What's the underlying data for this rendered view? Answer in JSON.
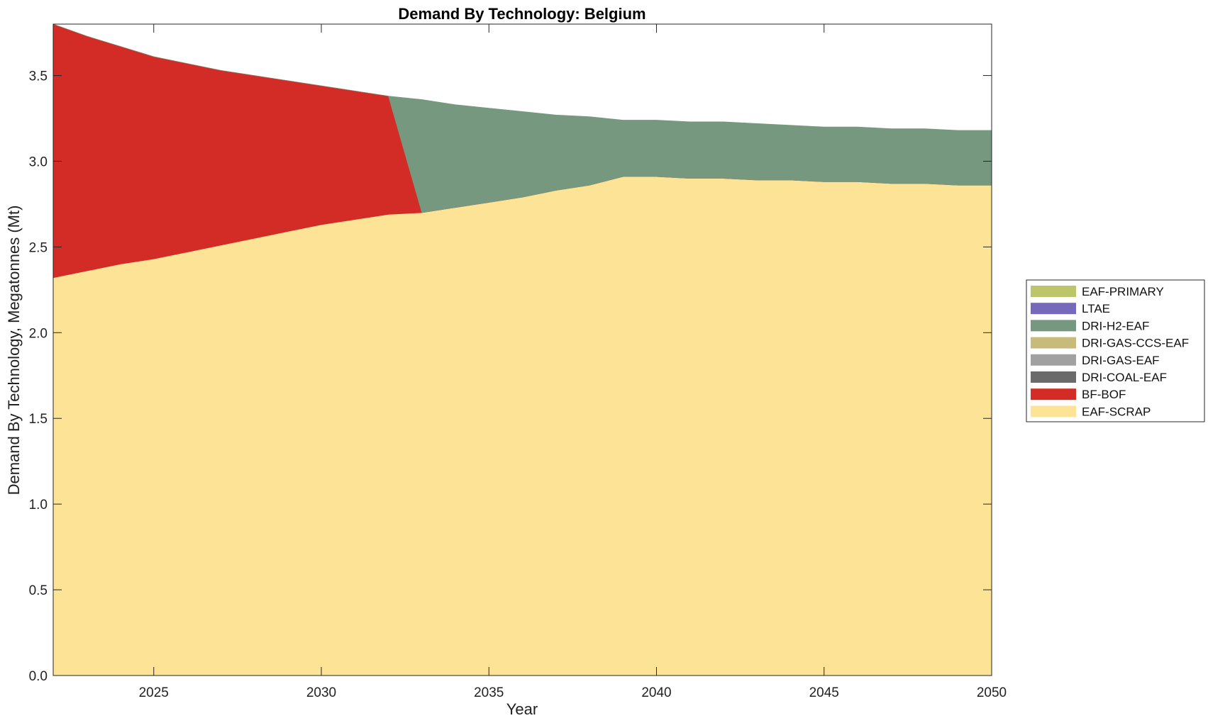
{
  "chart_data": {
    "type": "area",
    "stacked": true,
    "title": "Demand By Technology: Belgium",
    "xlabel": "Year",
    "ylabel": "Demand By Technology, Megatonnes (Mt)",
    "xlim": [
      2022,
      2050
    ],
    "ylim": [
      0,
      3.8
    ],
    "x_ticks": [
      "2025",
      "2030",
      "2035",
      "2040",
      "2045",
      "2050"
    ],
    "y_ticks": [
      "0.0",
      "0.5",
      "1.0",
      "1.5",
      "2.0",
      "2.5",
      "3.0",
      "3.5"
    ],
    "grid": false,
    "legend_position": "right",
    "x": [
      2022,
      2023,
      2024,
      2025,
      2026,
      2027,
      2028,
      2029,
      2030,
      2031,
      2032,
      2033,
      2034,
      2035,
      2036,
      2037,
      2038,
      2039,
      2040,
      2041,
      2042,
      2043,
      2044,
      2045,
      2046,
      2047,
      2048,
      2049,
      2050
    ],
    "series": [
      {
        "name": "EAF-SCRAP",
        "color": "#FDE395",
        "values": [
          2.32,
          2.36,
          2.4,
          2.43,
          2.47,
          2.51,
          2.55,
          2.59,
          2.63,
          2.66,
          2.69,
          2.7,
          2.73,
          2.76,
          2.79,
          2.83,
          2.86,
          2.91,
          2.91,
          2.9,
          2.9,
          2.89,
          2.89,
          2.88,
          2.88,
          2.87,
          2.87,
          2.86,
          2.86
        ]
      },
      {
        "name": "BF-BOF",
        "color": "#D32B25",
        "values": [
          1.48,
          1.37,
          1.27,
          1.18,
          1.1,
          1.02,
          0.95,
          0.88,
          0.81,
          0.75,
          0.69,
          0,
          0,
          0,
          0,
          0,
          0,
          0,
          0,
          0,
          0,
          0,
          0,
          0,
          0,
          0,
          0,
          0,
          0
        ]
      },
      {
        "name": "DRI-COAL-EAF",
        "color": "#6B6B6B",
        "values": [
          0,
          0,
          0,
          0,
          0,
          0,
          0,
          0,
          0,
          0,
          0,
          0,
          0,
          0,
          0,
          0,
          0,
          0,
          0,
          0,
          0,
          0,
          0,
          0,
          0,
          0,
          0,
          0,
          0
        ]
      },
      {
        "name": "DRI-GAS-EAF",
        "color": "#A1A1A1",
        "values": [
          0,
          0,
          0,
          0,
          0,
          0,
          0,
          0,
          0,
          0,
          0,
          0,
          0,
          0,
          0,
          0,
          0,
          0,
          0,
          0,
          0,
          0,
          0,
          0,
          0,
          0,
          0,
          0,
          0
        ]
      },
      {
        "name": "DRI-GAS-CCS-EAF",
        "color": "#C7BB7B",
        "values": [
          0,
          0,
          0,
          0,
          0,
          0,
          0,
          0,
          0,
          0,
          0,
          0,
          0,
          0,
          0,
          0,
          0,
          0,
          0,
          0,
          0,
          0,
          0,
          0,
          0,
          0,
          0,
          0,
          0
        ]
      },
      {
        "name": "DRI-H2-EAF",
        "color": "#76987E",
        "values": [
          0,
          0,
          0,
          0,
          0,
          0,
          0,
          0,
          0,
          0,
          0,
          0.66,
          0.6,
          0.55,
          0.5,
          0.44,
          0.4,
          0.33,
          0.33,
          0.33,
          0.33,
          0.33,
          0.32,
          0.32,
          0.32,
          0.32,
          0.32,
          0.32,
          0.32
        ]
      },
      {
        "name": "LTAE",
        "color": "#7569BB",
        "values": [
          0,
          0,
          0,
          0,
          0,
          0,
          0,
          0,
          0,
          0,
          0,
          0,
          0,
          0,
          0,
          0,
          0,
          0,
          0,
          0,
          0,
          0,
          0,
          0,
          0,
          0,
          0,
          0,
          0
        ]
      },
      {
        "name": "EAF-PRIMARY",
        "color": "#BDC56A",
        "values": [
          0,
          0,
          0,
          0,
          0,
          0,
          0,
          0,
          0,
          0,
          0,
          0,
          0,
          0,
          0,
          0,
          0,
          0,
          0,
          0,
          0,
          0,
          0,
          0,
          0,
          0,
          0,
          0,
          0
        ]
      }
    ],
    "legend_order": [
      "EAF-PRIMARY",
      "LTAE",
      "DRI-H2-EAF",
      "DRI-GAS-CCS-EAF",
      "DRI-GAS-EAF",
      "DRI-COAL-EAF",
      "BF-BOF",
      "EAF-SCRAP"
    ]
  }
}
